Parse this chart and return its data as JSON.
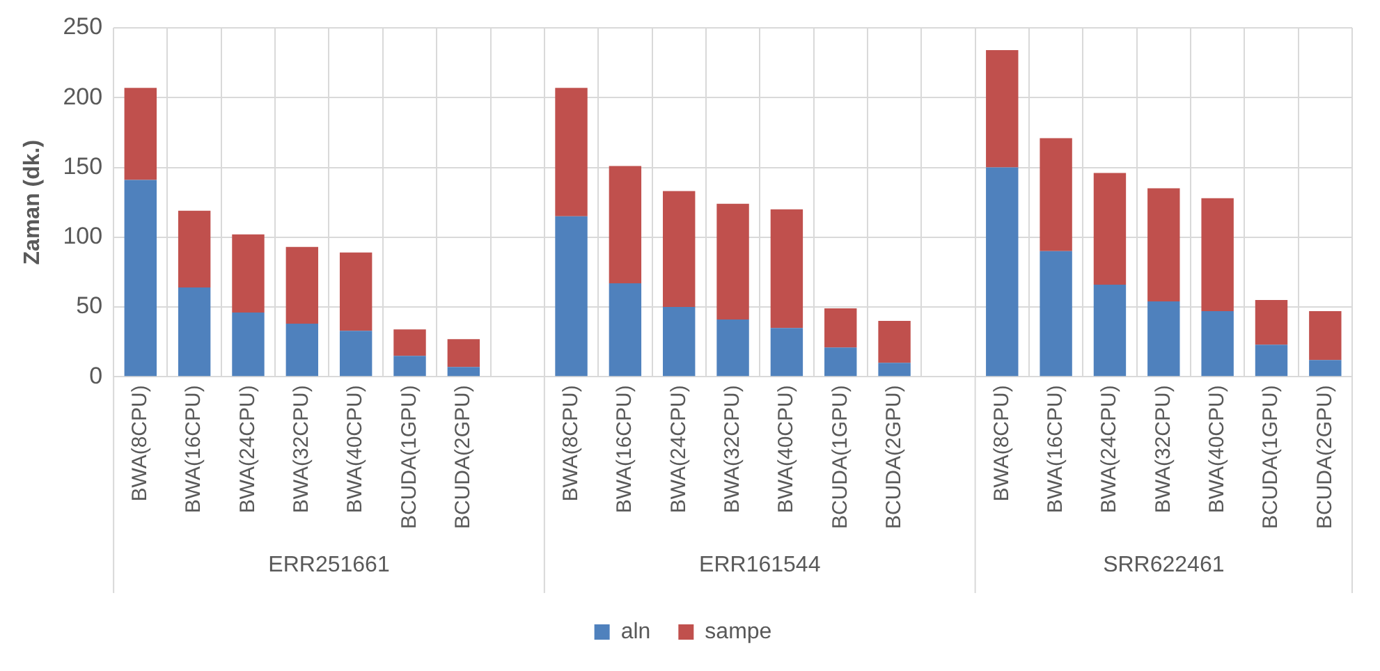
{
  "chart_data": {
    "type": "bar",
    "stacked": true,
    "ylabel": "Zaman (dk.)",
    "categories": [
      "BWA(8CPU)",
      "BWA(16CPU)",
      "BWA(24CPU)",
      "BWA(32CPU)",
      "BWA(40CPU)",
      "BCUDA(1GPU)",
      "BCUDA(2GPU)",
      null,
      "BWA(8CPU)",
      "BWA(16CPU)",
      "BWA(24CPU)",
      "BWA(32CPU)",
      "BWA(40CPU)",
      "BCUDA(1GPU)",
      "BCUDA(2GPU)",
      null,
      "BWA(8CPU)",
      "BWA(16CPU)",
      "BWA(24CPU)",
      "BWA(32CPU)",
      "BWA(40CPU)",
      "BCUDA(1GPU)",
      "BCUDA(2GPU)"
    ],
    "series": [
      {
        "name": "aln",
        "color": "#4f81bd",
        "values": [
          141,
          64,
          46,
          38,
          33,
          15,
          7,
          null,
          115,
          67,
          50,
          41,
          35,
          21,
          10,
          null,
          150,
          90,
          66,
          54,
          47,
          23,
          12
        ]
      },
      {
        "name": "sampe",
        "color": "#c0504d",
        "values": [
          66,
          55,
          56,
          55,
          56,
          19,
          20,
          null,
          92,
          84,
          83,
          83,
          85,
          28,
          30,
          null,
          84,
          81,
          80,
          81,
          81,
          32,
          35
        ]
      }
    ],
    "annotations": [
      "ERR251661",
      "ERR161544",
      "SRR622461"
    ],
    "ylim": [
      0,
      250
    ],
    "yticks": [
      0,
      50,
      100,
      150,
      200,
      250
    ],
    "grid": true,
    "legend": "bottom"
  }
}
